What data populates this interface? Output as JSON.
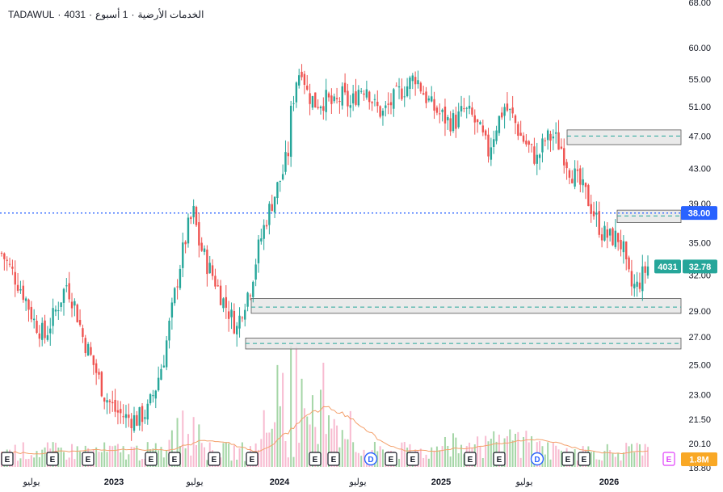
{
  "header": {
    "exchange": "TADAWUL",
    "symbol": "4031",
    "sep": "·",
    "name": "الخدمات الأرضية",
    "interval": "1 أسبوع"
  },
  "colors": {
    "up": "#26a69a",
    "down": "#ef5350",
    "vol_up": "#a5d6a7",
    "vol_down": "#f8bbd0",
    "ma": "#f4a06b",
    "level": "#2962ff",
    "zone_fill": "#e6e6e6",
    "zone_mid": "#26a69a",
    "price_badge": "#26a69a"
  },
  "badges": {
    "level_value": "38.00",
    "symbol": "4031",
    "price": "32.78",
    "volume": "1.8M"
  },
  "events": [
    "E",
    "E",
    "E",
    "E",
    "E",
    "E",
    "E",
    "E",
    "E",
    "D",
    "E",
    "E",
    "E",
    "E",
    "D",
    "E",
    "E"
  ],
  "event_tail_icon": "earnings-calendar-icon",
  "chart_data": {
    "type": "candlestick",
    "scale": "log",
    "y_ticks": [
      68.0,
      60.0,
      55.0,
      51.0,
      47.0,
      43.0,
      39.0,
      35.0,
      32.0,
      29.0,
      27.0,
      25.0,
      23.0,
      21.5,
      20.1,
      18.8
    ],
    "y_tick_labels": [
      "68.00",
      "60.00",
      "55.00",
      "51.00",
      "47.00",
      "43.00",
      "39.00",
      "35.00",
      "32.00",
      "29.00",
      "27.00",
      "25.00",
      "23.00",
      "21.50",
      "20.10",
      "18.80"
    ],
    "x_labels": [
      {
        "label": "يوليو",
        "bold": false
      },
      {
        "label": "2023",
        "bold": true
      },
      {
        "label": "يوليو",
        "bold": false
      },
      {
        "label": "2024",
        "bold": true
      },
      {
        "label": "يوليو",
        "bold": false
      },
      {
        "label": "2025",
        "bold": true
      },
      {
        "label": "يوليو",
        "bold": false
      },
      {
        "label": "2026",
        "bold": true
      }
    ],
    "horizontal_level": 38.0,
    "zones": [
      {
        "top": 47.8,
        "bottom": 45.9,
        "mid": 47.0
      },
      {
        "top": 38.3,
        "bottom": 37.0,
        "mid": 37.7
      },
      {
        "top": 30.0,
        "bottom": 28.8,
        "mid": 29.3
      },
      {
        "top": 26.9,
        "bottom": 26.1,
        "mid": 26.5
      }
    ],
    "anchors": [
      [
        0,
        34.0
      ],
      [
        5,
        31.8
      ],
      [
        8,
        30.5
      ],
      [
        12,
        28.2
      ],
      [
        16,
        27.0
      ],
      [
        20,
        29.0
      ],
      [
        24,
        31.2
      ],
      [
        27,
        29.5
      ],
      [
        30,
        27.0
      ],
      [
        34,
        25.0
      ],
      [
        38,
        23.0
      ],
      [
        42,
        22.0
      ],
      [
        46,
        21.6
      ],
      [
        50,
        21.5
      ],
      [
        54,
        22.0
      ],
      [
        57,
        23.5
      ],
      [
        60,
        25.5
      ],
      [
        63,
        29.0
      ],
      [
        66,
        33.0
      ],
      [
        69,
        36.5
      ],
      [
        71,
        38.0
      ],
      [
        73,
        35.0
      ],
      [
        76,
        33.0
      ],
      [
        79,
        31.5
      ],
      [
        82,
        29.8
      ],
      [
        85,
        28.5
      ],
      [
        87,
        27.6
      ],
      [
        89,
        29.3
      ],
      [
        92,
        31.0
      ],
      [
        95,
        34.5
      ],
      [
        98,
        37.5
      ],
      [
        101,
        40.0
      ],
      [
        104,
        42.5
      ],
      [
        106,
        45.0
      ],
      [
        107,
        50.0
      ],
      [
        109,
        55.0
      ],
      [
        111,
        57.0
      ],
      [
        113,
        53.0
      ],
      [
        116,
        51.5
      ],
      [
        120,
        52.0
      ],
      [
        123,
        51.0
      ],
      [
        126,
        52.5
      ],
      [
        129,
        51.0
      ],
      [
        132,
        53.5
      ],
      [
        135,
        54.0
      ],
      [
        138,
        51.0
      ],
      [
        141,
        50.0
      ],
      [
        144,
        51.5
      ],
      [
        147,
        53.0
      ],
      [
        150,
        54.0
      ],
      [
        153,
        55.5
      ],
      [
        156,
        53.0
      ],
      [
        159,
        51.0
      ],
      [
        162,
        50.0
      ],
      [
        165,
        49.0
      ],
      [
        168,
        49.0
      ],
      [
        171,
        50.5
      ],
      [
        174,
        49.5
      ],
      [
        177,
        47.5
      ],
      [
        180,
        45.0
      ],
      [
        183,
        48.5
      ],
      [
        186,
        51.0
      ],
      [
        189,
        49.5
      ],
      [
        192,
        47.0
      ],
      [
        195,
        45.5
      ],
      [
        198,
        44.0
      ],
      [
        201,
        46.5
      ],
      [
        204,
        47.0
      ],
      [
        207,
        45.5
      ],
      [
        210,
        43.0
      ],
      [
        213,
        41.5
      ],
      [
        216,
        40.0
      ],
      [
        219,
        38.0
      ],
      [
        222,
        36.0
      ],
      [
        225,
        35.5
      ],
      [
        228,
        35.5
      ],
      [
        230,
        34.2
      ],
      [
        231,
        32.5
      ],
      [
        233,
        31.0
      ],
      [
        235,
        31.0
      ],
      [
        237,
        32.0
      ],
      [
        239,
        32.78
      ]
    ],
    "last_price": 32.78
  }
}
